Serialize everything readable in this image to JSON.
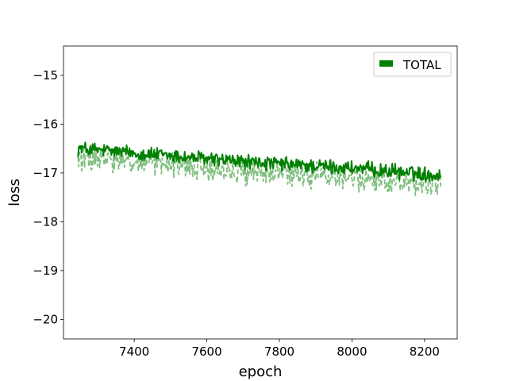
{
  "chart_data": {
    "type": "line",
    "title": "",
    "xlabel": "epoch",
    "ylabel": "loss",
    "xlim": [
      7205,
      8290
    ],
    "ylim": [
      -20.4,
      -14.4
    ],
    "xticks": [
      7400,
      7600,
      7800,
      8000,
      8200
    ],
    "yticks": [
      -20,
      -19,
      -18,
      -17,
      -16,
      -15
    ],
    "xtick_labels": [
      "7400",
      "7600",
      "7800",
      "8000",
      "8200"
    ],
    "ytick_labels": [
      "−20",
      "−19",
      "−18",
      "−17",
      "−16",
      "−15"
    ],
    "grid": false,
    "legend": {
      "placement": "top-right",
      "entries": [
        "TOTAL"
      ]
    },
    "series": [
      {
        "name": "TOTAL",
        "color": "#008000",
        "style": "solid",
        "x_range": [
          7245,
          8245
        ],
        "trend": [
          [
            7245,
            -16.5
          ],
          [
            7500,
            -16.65
          ],
          [
            7750,
            -16.8
          ],
          [
            8000,
            -16.9
          ],
          [
            8245,
            -17.05
          ]
        ],
        "noise_amplitude": 0.12,
        "y_min": -17.2,
        "y_max": -16.25
      },
      {
        "color": "#7fbf7f",
        "style": "dashed",
        "x_range": [
          7245,
          8245
        ],
        "trend": [
          [
            7245,
            -16.7
          ],
          [
            7500,
            -16.85
          ],
          [
            7750,
            -17.0
          ],
          [
            8000,
            -17.1
          ],
          [
            8245,
            -17.25
          ]
        ],
        "noise_amplitude": 0.2,
        "y_min": -17.6,
        "y_max": -16.4
      }
    ]
  }
}
